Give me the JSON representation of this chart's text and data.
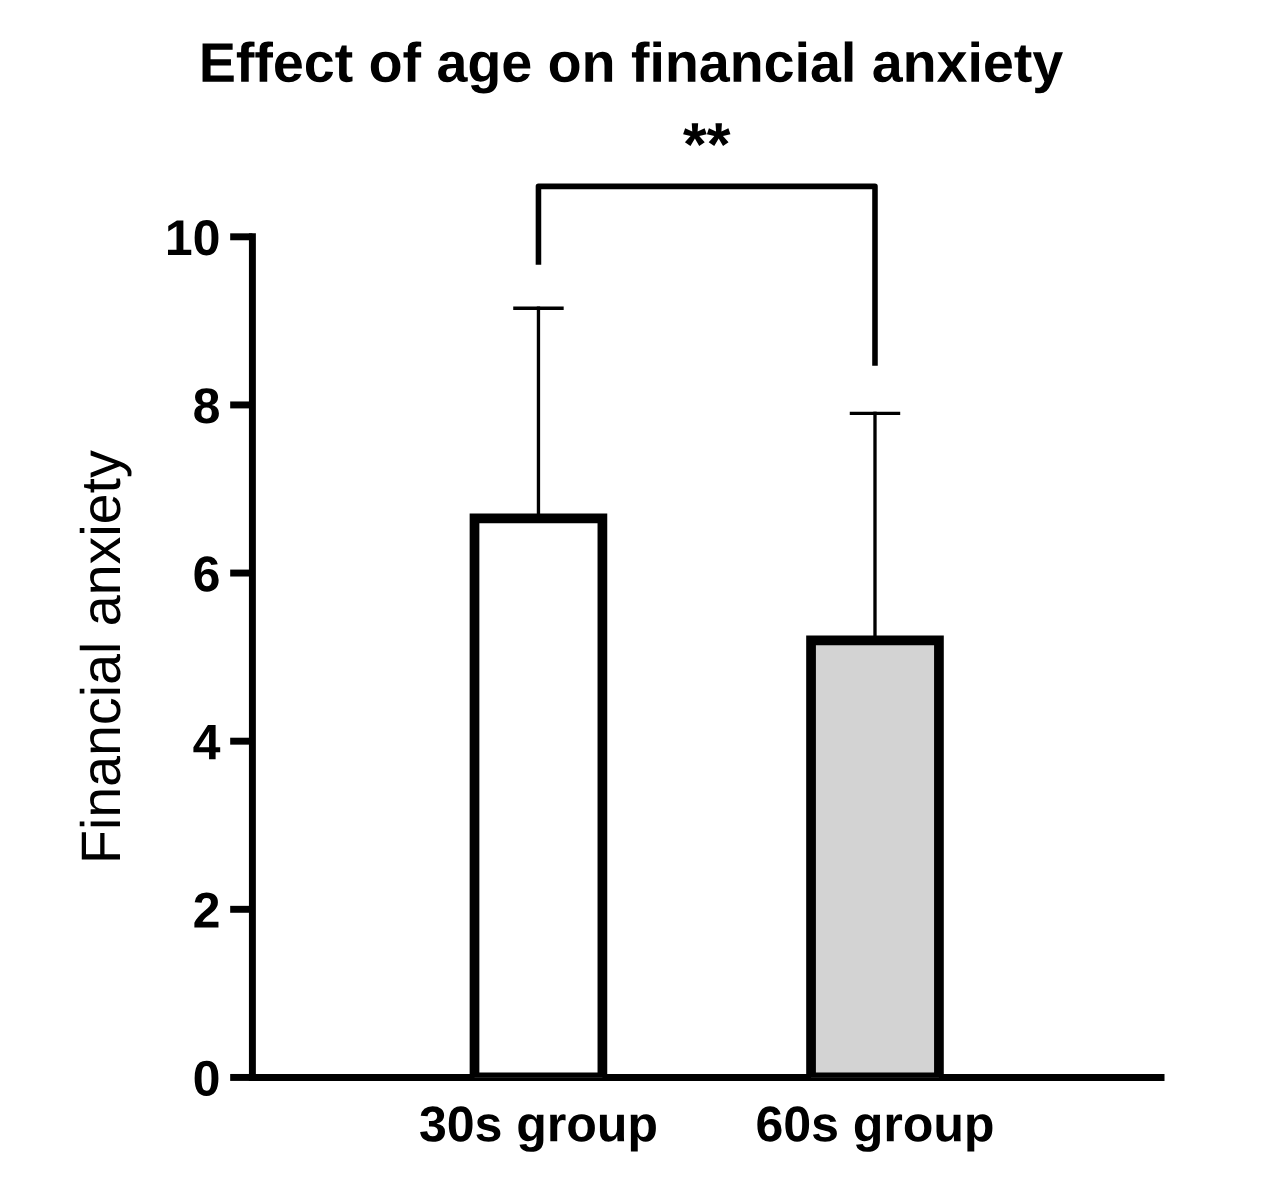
{
  "chart_data": {
    "type": "bar",
    "title": "Effect of age on financial anxiety",
    "ylabel": "Financial anxiety",
    "categories": [
      "30s group",
      "60s group"
    ],
    "values": [
      6.65,
      5.2
    ],
    "colors": [
      "#ffffff",
      "#d3d3d3"
    ],
    "errors": [
      [
        6.65,
        9.15
      ],
      [
        5.2,
        7.9
      ]
    ],
    "ylim": [
      0,
      10
    ],
    "yticks": [
      0,
      2,
      4,
      6,
      8,
      10
    ],
    "grid": false,
    "annotations": [
      "**"
    ]
  }
}
